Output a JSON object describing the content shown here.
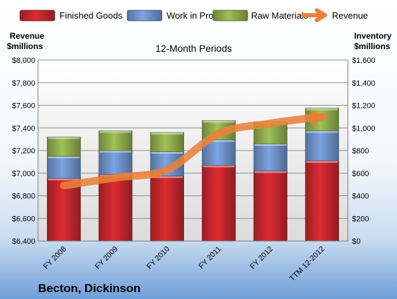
{
  "chart_data": {
    "type": "bar",
    "subtitle": "12-Month Periods",
    "company": "Becton, Dickinson",
    "left_axis_label_line1": "Revenue",
    "left_axis_label_line2": "$millions",
    "right_axis_label_line1": "Inventory",
    "right_axis_label_line2": "$millions",
    "categories": [
      "FY 2008",
      "FY 2009",
      "FY 2010",
      "FY 2011",
      "FY 2012",
      "TTM 12-2012"
    ],
    "stacked": true,
    "series": [
      {
        "name": "Finished Goods",
        "axis": "right",
        "color": "#c0262c",
        "values": [
          555,
          590,
          575,
          670,
          620,
          710
        ]
      },
      {
        "name": "Work in Progress",
        "axis": "right",
        "color": "#6b8fc4",
        "values": [
          195,
          210,
          215,
          225,
          240,
          265
        ]
      },
      {
        "name": "Raw Materials",
        "axis": "right",
        "color": "#8aa84a",
        "values": [
          170,
          175,
          170,
          170,
          195,
          200
        ]
      },
      {
        "name": "Revenue",
        "type": "line",
        "axis": "left",
        "color": "#e8823a",
        "values": [
          6890,
          6960,
          7030,
          7350,
          7440,
          7500
        ]
      }
    ],
    "left_axis": {
      "min": 6400,
      "max": 8000,
      "step": 200,
      "tick_labels": [
        "$6,400",
        "$6,600",
        "$6,800",
        "$7,000",
        "$7,200",
        "$7,400",
        "$7,600",
        "$7,800",
        "$8,000"
      ]
    },
    "right_axis": {
      "min": 0,
      "max": 1600,
      "step": 200,
      "tick_labels": [
        "$0",
        "$200",
        "$400",
        "$600",
        "$800",
        "$1,000",
        "$1,200",
        "$1,400",
        "$1,600"
      ]
    },
    "grid": true,
    "legend": "top"
  }
}
